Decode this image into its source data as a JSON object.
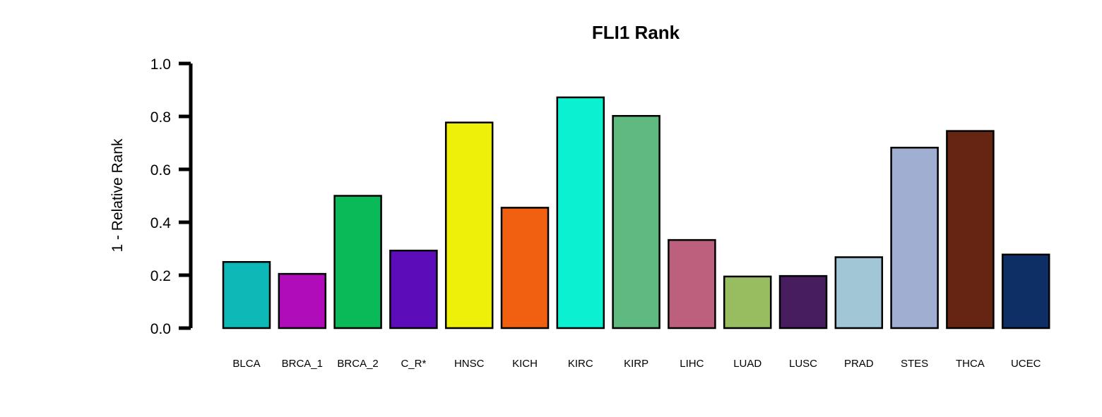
{
  "chart_data": {
    "type": "bar",
    "title": "FLI1 Rank",
    "xlabel": "",
    "ylabel": "1 - Relative Rank",
    "ylim": [
      0,
      1
    ],
    "yticks": [
      "0.0",
      "0.2",
      "0.4",
      "0.6",
      "0.8",
      "1.0"
    ],
    "grid": false,
    "legend": "none",
    "categories": [
      "BLCA",
      "BRCA_1",
      "BRCA_2",
      "C_R*",
      "HNSC",
      "KICH",
      "KIRC",
      "KIRP",
      "LIHC",
      "LUAD",
      "LUSC",
      "PRAD",
      "STES",
      "THCA",
      "UCEC"
    ],
    "values": [
      0.25,
      0.205,
      0.5,
      0.293,
      0.777,
      0.455,
      0.872,
      0.802,
      0.333,
      0.195,
      0.197,
      0.268,
      0.682,
      0.745,
      0.278
    ],
    "colors": [
      "#0CB9B6",
      "#B00CB9",
      "#0AB957",
      "#5C0CB9",
      "#EEF00A",
      "#F06010",
      "#0CF0D2",
      "#5FBA80",
      "#BC607E",
      "#98BC60",
      "#471D60",
      "#A1C6D5",
      "#A0AED2",
      "#662412",
      "#0E2F65"
    ]
  }
}
